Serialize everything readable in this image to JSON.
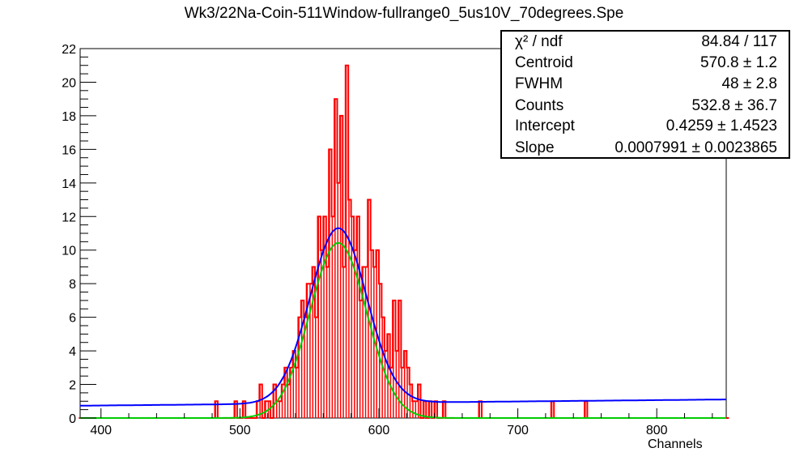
{
  "chart_data": {
    "type": "histogram",
    "title": "Wk3/22Na-Coin-511Window-fullrange0_5us10V_70degrees.Spe",
    "xlabel": "Channels",
    "ylabel": "",
    "xlim": [
      385,
      850
    ],
    "ylim": [
      0,
      22
    ],
    "xticks": [
      400,
      500,
      600,
      700,
      800
    ],
    "yticks": [
      0,
      2,
      4,
      6,
      8,
      10,
      12,
      14,
      16,
      18,
      20,
      22
    ],
    "grid": false,
    "histogram": {
      "name": "data",
      "color": "#ff0000",
      "bin_width": 2,
      "counts": [
        {
          "x": 482,
          "y": 1
        },
        {
          "x": 496,
          "y": 1
        },
        {
          "x": 502,
          "y": 1
        },
        {
          "x": 512,
          "y": 1
        },
        {
          "x": 514,
          "y": 2
        },
        {
          "x": 518,
          "y": 1
        },
        {
          "x": 520,
          "y": 1
        },
        {
          "x": 524,
          "y": 2
        },
        {
          "x": 526,
          "y": 1
        },
        {
          "x": 528,
          "y": 1
        },
        {
          "x": 530,
          "y": 2
        },
        {
          "x": 532,
          "y": 3
        },
        {
          "x": 534,
          "y": 2
        },
        {
          "x": 536,
          "y": 3
        },
        {
          "x": 538,
          "y": 4
        },
        {
          "x": 540,
          "y": 3
        },
        {
          "x": 542,
          "y": 6
        },
        {
          "x": 544,
          "y": 7
        },
        {
          "x": 546,
          "y": 6
        },
        {
          "x": 548,
          "y": 8
        },
        {
          "x": 550,
          "y": 8
        },
        {
          "x": 552,
          "y": 9
        },
        {
          "x": 554,
          "y": 6
        },
        {
          "x": 556,
          "y": 12
        },
        {
          "x": 558,
          "y": 10
        },
        {
          "x": 560,
          "y": 12
        },
        {
          "x": 562,
          "y": 9
        },
        {
          "x": 564,
          "y": 16
        },
        {
          "x": 566,
          "y": 12
        },
        {
          "x": 568,
          "y": 19
        },
        {
          "x": 570,
          "y": 14
        },
        {
          "x": 572,
          "y": 18
        },
        {
          "x": 574,
          "y": 9
        },
        {
          "x": 576,
          "y": 21
        },
        {
          "x": 578,
          "y": 13
        },
        {
          "x": 580,
          "y": 12
        },
        {
          "x": 582,
          "y": 10
        },
        {
          "x": 584,
          "y": 12
        },
        {
          "x": 586,
          "y": 7
        },
        {
          "x": 588,
          "y": 9
        },
        {
          "x": 590,
          "y": 9
        },
        {
          "x": 592,
          "y": 13
        },
        {
          "x": 594,
          "y": 10
        },
        {
          "x": 596,
          "y": 9
        },
        {
          "x": 598,
          "y": 10
        },
        {
          "x": 600,
          "y": 8
        },
        {
          "x": 602,
          "y": 6
        },
        {
          "x": 604,
          "y": 4
        },
        {
          "x": 606,
          "y": 5
        },
        {
          "x": 608,
          "y": 3
        },
        {
          "x": 610,
          "y": 7
        },
        {
          "x": 612,
          "y": 4
        },
        {
          "x": 614,
          "y": 7
        },
        {
          "x": 616,
          "y": 3
        },
        {
          "x": 618,
          "y": 4
        },
        {
          "x": 620,
          "y": 3
        },
        {
          "x": 622,
          "y": 2
        },
        {
          "x": 624,
          "y": 1
        },
        {
          "x": 626,
          "y": 1
        },
        {
          "x": 628,
          "y": 2
        },
        {
          "x": 632,
          "y": 1
        },
        {
          "x": 636,
          "y": 1
        },
        {
          "x": 640,
          "y": 1
        },
        {
          "x": 646,
          "y": 1
        },
        {
          "x": 672,
          "y": 1
        },
        {
          "x": 724,
          "y": 1
        },
        {
          "x": 748,
          "y": 1
        }
      ]
    },
    "series": [
      {
        "name": "Gaussian + linear fit",
        "color": "#0000ff",
        "centroid": 570.8,
        "fwhm": 48,
        "counts": 532.8,
        "intercept": 0.4259,
        "slope": 0.0007991
      },
      {
        "name": "Gaussian component",
        "color": "#00cc00",
        "centroid": 570.8,
        "fwhm": 48,
        "counts": 532.8,
        "intercept": 0,
        "slope": 0
      }
    ]
  },
  "stats": {
    "rows": [
      {
        "label": "χ² / ndf",
        "value": "84.84 / 117"
      },
      {
        "label": "Centroid",
        "value": "570.8 ± 1.2"
      },
      {
        "label": "FWHM",
        "value": "48 ± 2.8"
      },
      {
        "label": "Counts",
        "value": "532.8 ± 36.7"
      },
      {
        "label": "Intercept",
        "value": "0.4259 ± 1.4523"
      },
      {
        "label": "Slope",
        "value": "0.0007991 ± 0.0023865"
      }
    ]
  }
}
